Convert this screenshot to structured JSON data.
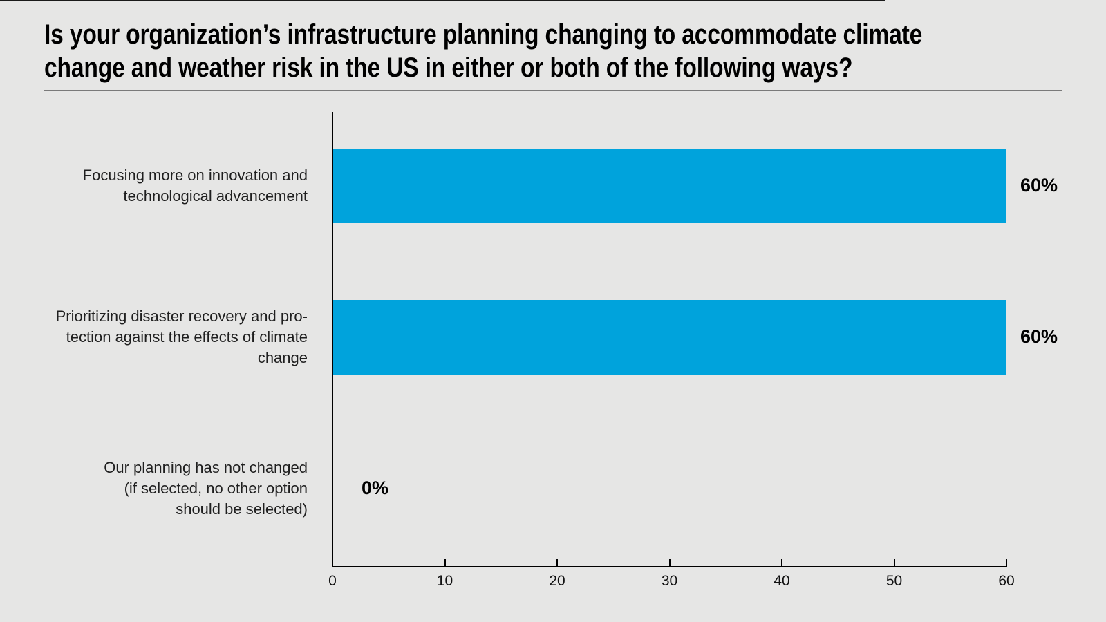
{
  "header": {
    "title": "Is your organization’s infrastructure planning changing to accommodate climate change and weather risk in the US in either or both of the following ways?",
    "title_lines": [
      "Is your organization’s infrastructure planning changing to accommodate climate",
      "change and weather risk in the US in either or both of the following ways?"
    ]
  },
  "chart": {
    "rows": [
      {
        "label_lines": [
          "Focusing more on innovation and",
          "technological advancement"
        ],
        "value": 60,
        "value_label": "60%"
      },
      {
        "label_lines": [
          "Prioritizing disaster recovery and pro-",
          "tection against the effects of climate",
          "change"
        ],
        "value": 60,
        "value_label": "60%"
      },
      {
        "label_lines": [
          "Our planning has not changed",
          "(if selected, no other option",
          "should be selected)"
        ],
        "value": 0,
        "value_label": "0%"
      }
    ],
    "axis": {
      "min": 0,
      "max": 60,
      "ticks": [
        0,
        10,
        20,
        30,
        40,
        50,
        60
      ]
    }
  },
  "chart_data": {
    "type": "bar",
    "orientation": "horizontal",
    "title": "Is your organization’s infrastructure planning changing to accommodate climate change and weather risk in the US in either or both of the following ways?",
    "categories": [
      "Focusing more on innovation and technological advancement",
      "Prioritizing disaster recovery and protection against the effects of climate change",
      "Our planning has not changed (if selected, no other option should be selected)"
    ],
    "values": [
      60,
      60,
      0
    ],
    "value_labels": [
      "60%",
      "60%",
      "0%"
    ],
    "xlabel": "",
    "ylabel": "",
    "xlim": [
      0,
      60
    ],
    "xticks": [
      0,
      10,
      20,
      30,
      40,
      50,
      60
    ],
    "grid": false,
    "legend": false,
    "bar_color": "#00A3DC"
  },
  "colors": {
    "background": "#E6E6E5",
    "bar": "#00A3DC",
    "axis": "#000000",
    "text": "#1A1A1A",
    "divider": "#7A7A7A",
    "top_border": "#1A1A1A"
  }
}
